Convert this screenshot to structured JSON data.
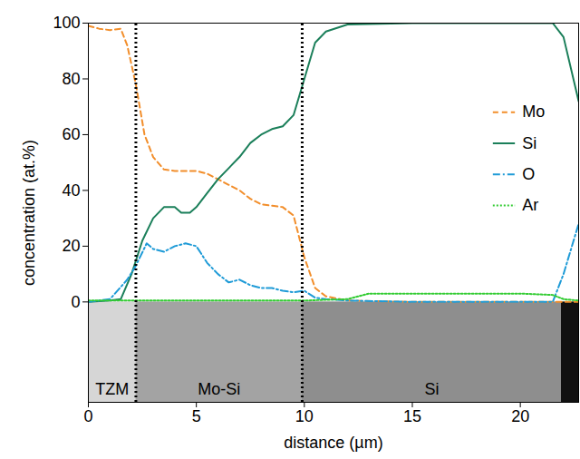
{
  "chart_data": {
    "type": "line",
    "x_label": "distance (µm)",
    "y_label": "concentration (at.%)",
    "xlim": [
      0,
      22.7
    ],
    "ylim": [
      -36,
      100
    ],
    "xticks": [
      0,
      5,
      10,
      15,
      20
    ],
    "yticks": [
      0,
      20,
      40,
      60,
      80,
      100
    ],
    "legend": "right",
    "boundaries": [
      2.2,
      9.9
    ],
    "image_ylim": [
      -36,
      0
    ],
    "regions": [
      {
        "label": "TZM",
        "from": 0,
        "to": 2.2,
        "color": "#d6d6d6"
      },
      {
        "label": "Mo-Si",
        "from": 2.2,
        "to": 9.9,
        "color": "#a3a3a3"
      },
      {
        "label": "Si",
        "from": 9.9,
        "to": 21.9,
        "color": "#8e8e8e"
      },
      {
        "label": null,
        "from": 21.9,
        "to": 22.7,
        "color": "#111111"
      }
    ],
    "series": [
      {
        "name": "Mo",
        "color": "#f28e2b",
        "line_style": "dashed",
        "x": [
          0,
          0.5,
          1,
          1.5,
          1.8,
          2.2,
          2.6,
          3,
          3.5,
          4,
          5,
          5.5,
          6,
          6.5,
          7,
          7.5,
          8,
          9,
          9.5,
          10,
          10.5,
          11,
          12,
          15,
          20,
          22.7
        ],
        "values": [
          99,
          98,
          97.5,
          98,
          92,
          78,
          60,
          52,
          47.5,
          47,
          47,
          46,
          44,
          42,
          40,
          37,
          35,
          34,
          31,
          16,
          5,
          2,
          0.5,
          0,
          0,
          0
        ]
      },
      {
        "name": "Si",
        "color": "#1b7f5a",
        "line_style": "solid",
        "x": [
          0,
          1,
          1.5,
          2,
          2.5,
          3,
          3.5,
          4,
          4.3,
          4.7,
          5,
          5.5,
          6,
          6.5,
          7,
          7.5,
          8,
          8.5,
          9,
          9.5,
          10,
          10.5,
          11,
          12,
          15,
          20,
          21.5,
          22,
          22.7
        ],
        "values": [
          0,
          0.5,
          1,
          10,
          22,
          30,
          34,
          34,
          32,
          32,
          34,
          39,
          44,
          48,
          52,
          57,
          60,
          62,
          63,
          67,
          80,
          93,
          97,
          99.5,
          100,
          100,
          100,
          95,
          72
        ]
      },
      {
        "name": "O",
        "color": "#1f9bd7",
        "line_style": "dashdot",
        "x": [
          0,
          1,
          1.8,
          2.2,
          2.7,
          3,
          3.5,
          4,
          4.5,
          5,
          5.5,
          6,
          6.5,
          7,
          7.5,
          8,
          8.5,
          9,
          9.5,
          10,
          10.5,
          11,
          12,
          15,
          21.5,
          22,
          22.7
        ],
        "values": [
          0,
          1,
          8,
          13,
          21,
          19,
          18,
          20,
          21,
          20,
          14,
          10,
          7,
          8,
          6,
          5,
          5,
          4,
          3.5,
          4,
          1.5,
          1,
          0.5,
          0,
          0,
          10,
          28
        ]
      },
      {
        "name": "Ar",
        "color": "#33cc33",
        "line_style": "dotted",
        "x": [
          0,
          10,
          12,
          13,
          15,
          18,
          20,
          21.5,
          22,
          22.7
        ],
        "values": [
          0.5,
          0.5,
          1,
          3,
          3,
          3,
          3,
          2.5,
          1,
          0.5
        ]
      }
    ]
  }
}
